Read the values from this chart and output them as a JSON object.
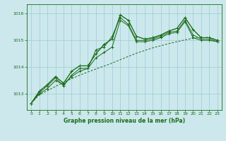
{
  "title": "Graphe pression niveau de la mer (hPa)",
  "background_color": "#cce8ec",
  "grid_color": "#99ccd4",
  "line_color": "#1a6b1a",
  "x_ticks": [
    0,
    1,
    2,
    3,
    4,
    5,
    6,
    7,
    8,
    9,
    10,
    11,
    12,
    13,
    14,
    15,
    16,
    17,
    18,
    19,
    20,
    21,
    22,
    23
  ],
  "y_ticks": [
    1013,
    1014,
    1015,
    1016
  ],
  "ylim": [
    1012.4,
    1016.35
  ],
  "xlim": [
    -0.5,
    23.5
  ],
  "series1": [
    1012.65,
    1013.1,
    1013.35,
    1013.65,
    1013.4,
    1013.85,
    1014.05,
    1014.05,
    1014.5,
    1014.85,
    1015.05,
    1015.95,
    1015.75,
    1015.15,
    1015.05,
    1015.1,
    1015.2,
    1015.35,
    1015.45,
    1015.85,
    1015.4,
    1015.1,
    1015.1,
    1015.0
  ],
  "series2": [
    1012.65,
    1013.1,
    1013.35,
    1013.65,
    1013.4,
    1013.85,
    1014.05,
    1014.05,
    1014.5,
    1014.85,
    1015.05,
    1015.95,
    1015.75,
    1015.15,
    1015.05,
    1015.1,
    1015.2,
    1015.35,
    1015.45,
    1015.85,
    1015.4,
    1015.1,
    1015.1,
    1015.0
  ],
  "series3": [
    1012.65,
    1013.05,
    1013.3,
    1013.6,
    1013.3,
    1013.7,
    1013.95,
    1013.95,
    1014.65,
    1014.75,
    1015.15,
    1015.85,
    1015.6,
    1015.0,
    1015.0,
    1015.05,
    1015.15,
    1015.3,
    1015.35,
    1015.75,
    1015.2,
    1015.05,
    1015.05,
    1014.95
  ],
  "series4": [
    1012.65,
    1013.0,
    1013.2,
    1013.5,
    1013.35,
    1013.65,
    1013.85,
    1013.95,
    1014.35,
    1014.55,
    1014.75,
    1015.75,
    1015.55,
    1014.95,
    1014.95,
    1015.0,
    1015.1,
    1015.25,
    1015.3,
    1015.7,
    1015.1,
    1015.0,
    1015.0,
    1014.95
  ],
  "dashed_series": [
    1012.65,
    1012.97,
    1013.12,
    1013.28,
    1013.43,
    1013.57,
    1013.7,
    1013.82,
    1013.93,
    1014.04,
    1014.15,
    1014.28,
    1014.4,
    1014.52,
    1014.62,
    1014.72,
    1014.8,
    1014.88,
    1014.95,
    1015.02,
    1015.08,
    1015.1,
    1015.12,
    1015.0
  ]
}
